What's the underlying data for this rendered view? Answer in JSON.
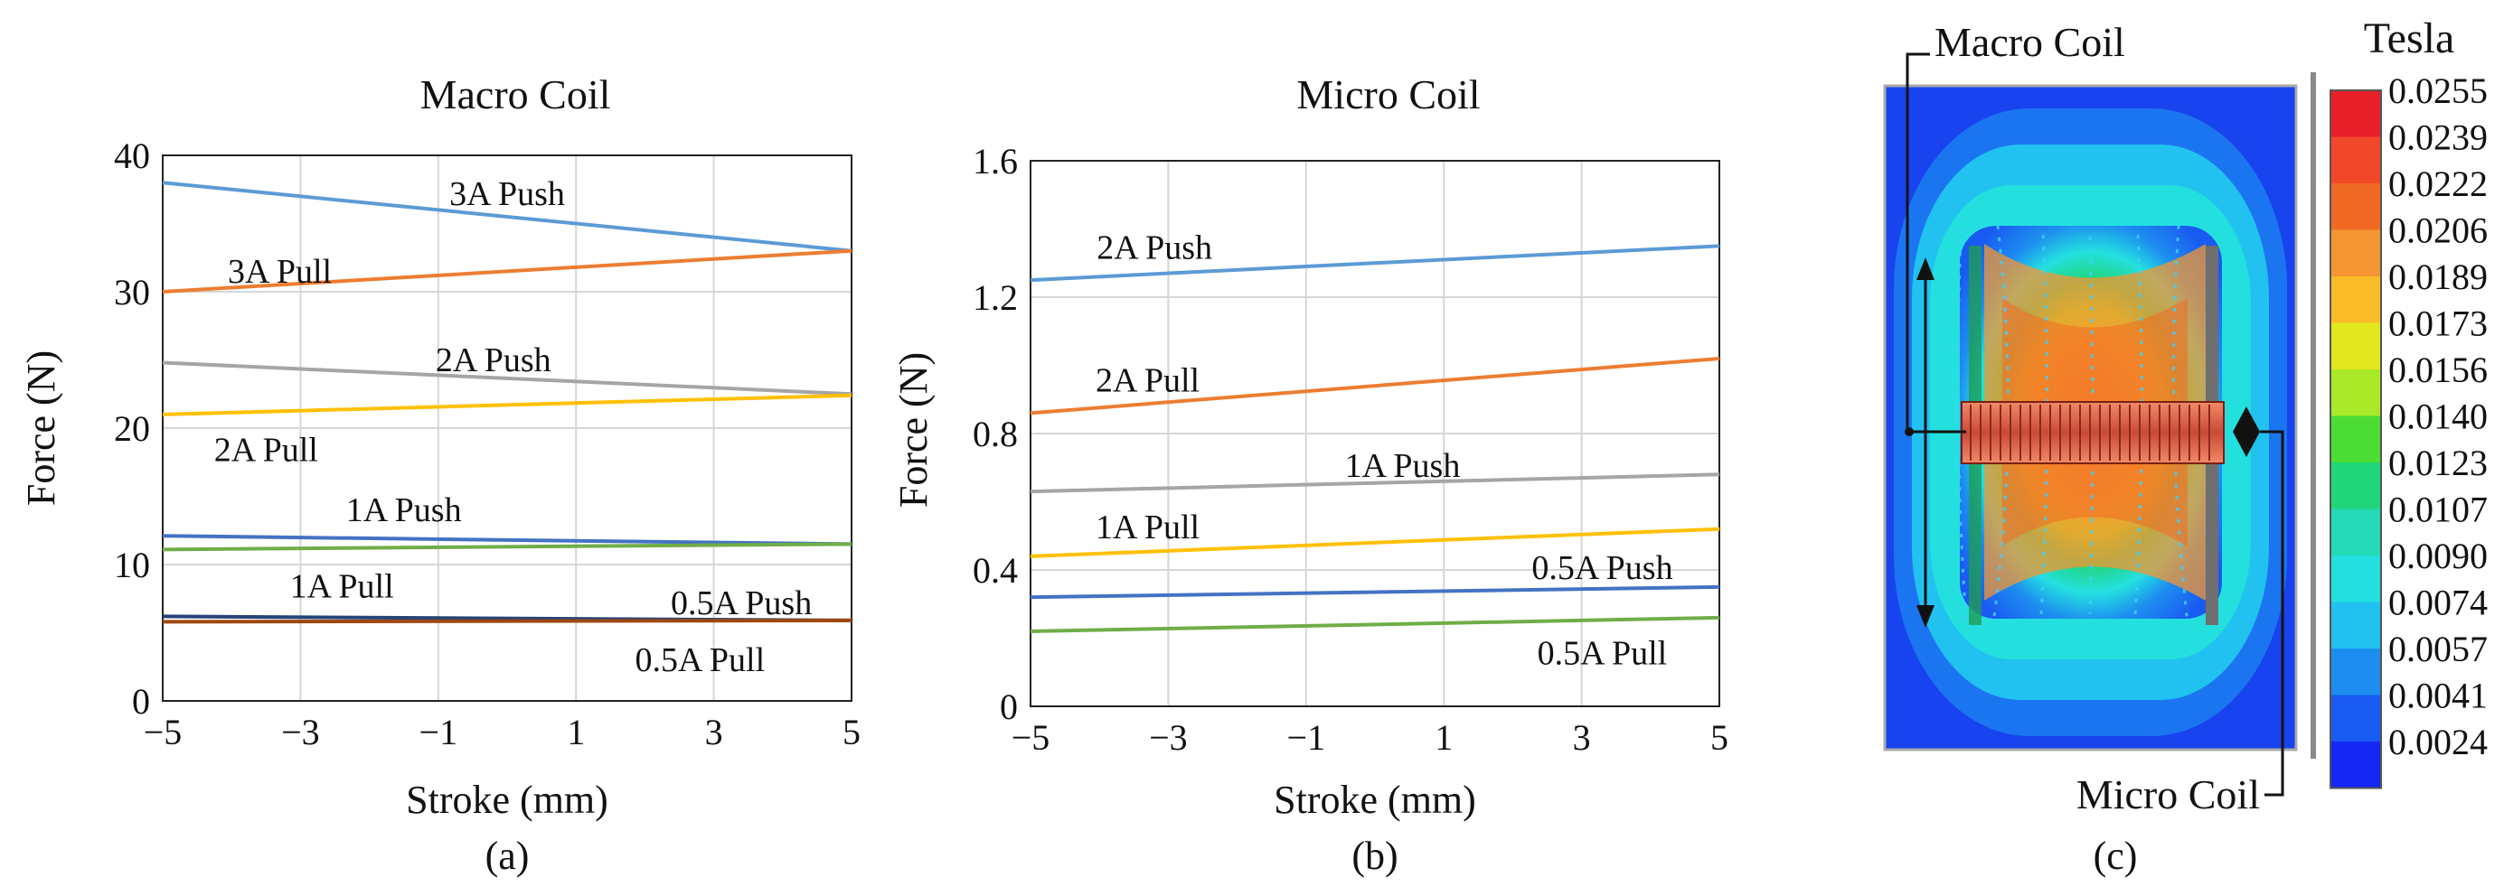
{
  "chart_data": [
    {
      "type": "line",
      "title": "Macro Coil",
      "xlabel": "Stroke (mm)",
      "ylabel": "Force (N)",
      "panel_label": "(a)",
      "xlim": [
        -5,
        5
      ],
      "ylim": [
        0,
        40
      ],
      "xticks": [
        -5,
        -3,
        -1,
        1,
        3,
        5
      ],
      "xtick_labels": [
        "−5",
        "−3",
        "−1",
        "1",
        "3",
        "5"
      ],
      "yticks": [
        0,
        10,
        20,
        30,
        40
      ],
      "ytick_labels": [
        "0",
        "10",
        "20",
        "30",
        "40"
      ],
      "grid": true,
      "series": [
        {
          "name": "3A Push",
          "color": "#5b9bd5",
          "x": [
            -5,
            5
          ],
          "y": [
            38.0,
            33.0
          ],
          "label_at": [
            0.0,
            37.3
          ]
        },
        {
          "name": "3A Pull",
          "color": "#ed7d31",
          "x": [
            -5,
            5
          ],
          "y": [
            30.0,
            33.0
          ],
          "label_at": [
            -3.3,
            31.6
          ]
        },
        {
          "name": "2A Push",
          "color": "#a5a5a5",
          "x": [
            -5,
            5
          ],
          "y": [
            24.8,
            22.5
          ],
          "label_at": [
            -0.2,
            25.1
          ]
        },
        {
          "name": "2A Pull",
          "color": "#ffc000",
          "x": [
            -5,
            5
          ],
          "y": [
            21.0,
            22.4
          ],
          "label_at": [
            -3.5,
            18.5
          ]
        },
        {
          "name": "1A Push",
          "color": "#4472c4",
          "x": [
            -5,
            5
          ],
          "y": [
            12.1,
            11.5
          ],
          "label_at": [
            -1.5,
            14.1
          ]
        },
        {
          "name": "1A Pull",
          "color": "#70ad47",
          "x": [
            -5,
            5
          ],
          "y": [
            11.1,
            11.5
          ],
          "label_at": [
            -2.4,
            8.5
          ]
        },
        {
          "name": "0.5A Push",
          "color": "#264478",
          "x": [
            -5,
            5
          ],
          "y": [
            6.2,
            5.9
          ],
          "label_at": [
            3.4,
            7.3
          ]
        },
        {
          "name": "0.5A Pull",
          "color": "#9e480e",
          "x": [
            -5,
            5
          ],
          "y": [
            5.8,
            5.9
          ],
          "label_at": [
            2.8,
            3.1
          ]
        }
      ]
    },
    {
      "type": "line",
      "title": "Micro Coil",
      "xlabel": "Stroke (mm)",
      "ylabel": "Force (N)",
      "panel_label": "(b)",
      "xlim": [
        -5,
        5
      ],
      "ylim": [
        0,
        1.6
      ],
      "xticks": [
        -5,
        -3,
        -1,
        1,
        3,
        5
      ],
      "xtick_labels": [
        "−5",
        "−3",
        "−1",
        "1",
        "3",
        "5"
      ],
      "yticks": [
        0,
        0.4,
        0.8,
        1.2,
        1.6
      ],
      "ytick_labels": [
        "0",
        "0.4",
        "0.8",
        "1.2",
        "1.6"
      ],
      "grid": true,
      "series": [
        {
          "name": "2A Push",
          "color": "#5b9bd5",
          "x": [
            -5,
            5
          ],
          "y": [
            1.25,
            1.35
          ],
          "label_at": [
            -3.2,
            1.35
          ]
        },
        {
          "name": "2A Pull",
          "color": "#ed7d31",
          "x": [
            -5,
            5
          ],
          "y": [
            0.86,
            1.02
          ],
          "label_at": [
            -3.3,
            0.96
          ]
        },
        {
          "name": "1A Push",
          "color": "#a5a5a5",
          "x": [
            -5,
            5
          ],
          "y": [
            0.63,
            0.68
          ],
          "label_at": [
            0.4,
            0.71
          ]
        },
        {
          "name": "1A Pull",
          "color": "#ffc000",
          "x": [
            -5,
            5
          ],
          "y": [
            0.44,
            0.52
          ],
          "label_at": [
            -3.3,
            0.53
          ]
        },
        {
          "name": "0.5A Push",
          "color": "#4472c4",
          "x": [
            -5,
            5
          ],
          "y": [
            0.32,
            0.35
          ],
          "label_at": [
            3.3,
            0.41
          ]
        },
        {
          "name": "0.5A Pull",
          "color": "#70ad47",
          "x": [
            -5,
            5
          ],
          "y": [
            0.22,
            0.26
          ],
          "label_at": [
            3.3,
            0.16
          ]
        }
      ]
    }
  ],
  "field_panel": {
    "type": "heatmap",
    "panel_label": "(c)",
    "title": "Tesla",
    "annotations": [
      "Macro Coil",
      "Micro Coil"
    ],
    "colorbar_values": [
      "0.0255",
      "0.0239",
      "0.0222",
      "0.0206",
      "0.0189",
      "0.0173",
      "0.0156",
      "0.0140",
      "0.0123",
      "0.0107",
      "0.0090",
      "0.0074",
      "0.0057",
      "0.0041",
      "0.0024"
    ],
    "colorbar_colors": [
      "#e8202a",
      "#f2482a",
      "#f06a25",
      "#f69533",
      "#fbbd27",
      "#e2e61e",
      "#a9e927",
      "#4bdd33",
      "#21d67a",
      "#24d9b5",
      "#23e0df",
      "#21c2f0",
      "#1d8ef0",
      "#195af0",
      "#1527f2"
    ]
  }
}
